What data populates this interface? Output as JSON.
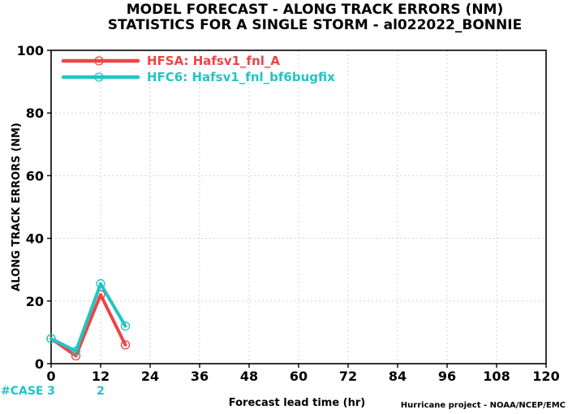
{
  "chart_data": {
    "type": "line",
    "title": "MODEL FORECAST - ALONG TRACK ERRORS (NM)",
    "subtitle": "STATISTICS FOR A SINGLE STORM - al022022_BONNIE",
    "xlabel": "Forecast lead time (hr)",
    "ylabel": "ALONG TRACK ERRORS (NM)",
    "xlim": [
      0,
      120
    ],
    "ylim": [
      0,
      100
    ],
    "x_ticks": [
      0,
      12,
      24,
      36,
      48,
      60,
      72,
      84,
      96,
      108,
      120
    ],
    "y_ticks": [
      0,
      20,
      40,
      60,
      80,
      100
    ],
    "grid": true,
    "legend_position": "top-left",
    "series": [
      {
        "name": "HFSA: Hafsv1_fnl_A",
        "color": "#ee4444",
        "x": [
          0,
          6,
          12,
          18
        ],
        "y": [
          8,
          2.5,
          22,
          6
        ]
      },
      {
        "name": "HFC6: Hafsv1_fnl_bf6bugfix",
        "color": "#22c4c4",
        "x": [
          0,
          6,
          12,
          18
        ],
        "y": [
          8,
          4,
          25.5,
          12
        ]
      }
    ],
    "cases": {
      "label": "#CASE",
      "color": "#22c4c4",
      "x": [
        0,
        12
      ],
      "values": [
        "3",
        "2"
      ]
    },
    "footer": "Hurricane project - NOAA/NCEP/EMC"
  }
}
